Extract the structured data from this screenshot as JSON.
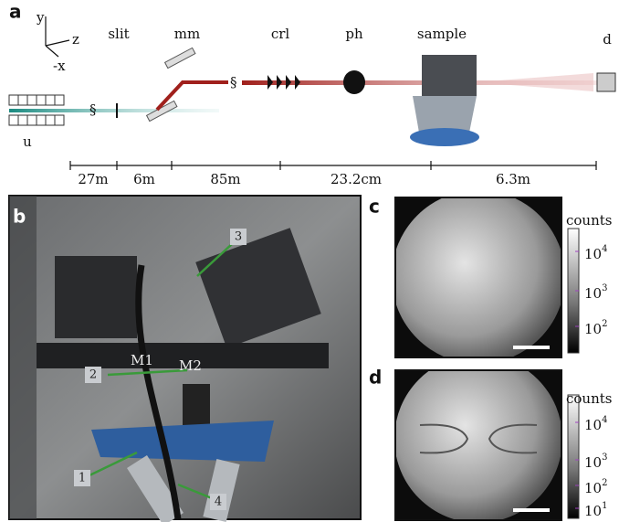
{
  "panels": {
    "a": {
      "label": "a",
      "axes": {
        "y": "y",
        "z": "z",
        "x": "-x"
      },
      "components": {
        "slit": "slit",
        "mm": "mm",
        "crl": "crl",
        "ph": "ph",
        "sample": "sample",
        "detector": "d",
        "undulator": "u"
      },
      "distances": [
        "27m",
        "6m",
        "85m",
        "23.2cm",
        "6.3m"
      ]
    },
    "b": {
      "label": "b",
      "markers": [
        "1",
        "2",
        "3",
        "4"
      ],
      "mirrors": [
        "M1",
        "M2"
      ]
    },
    "c": {
      "label": "c",
      "colorbar": {
        "title": "counts",
        "ticks": [
          {
            "base": "10",
            "exp": "4"
          },
          {
            "base": "10",
            "exp": "3"
          },
          {
            "base": "10",
            "exp": "2"
          }
        ]
      }
    },
    "d": {
      "label": "d",
      "colorbar": {
        "title": "counts",
        "ticks": [
          {
            "base": "10",
            "exp": "4"
          },
          {
            "base": "10",
            "exp": "3"
          },
          {
            "base": "10",
            "exp": "2"
          },
          {
            "base": "10",
            "exp": "1"
          }
        ]
      }
    }
  }
}
